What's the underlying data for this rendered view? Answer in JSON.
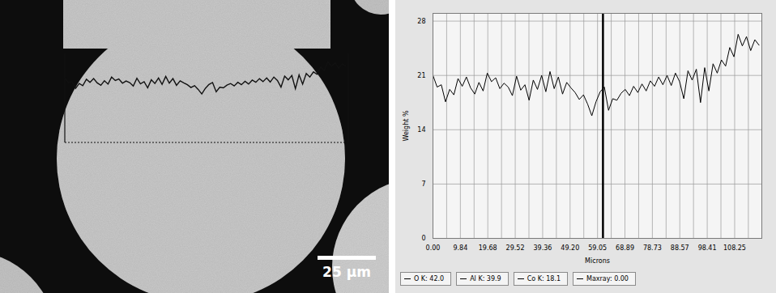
{
  "chart_data": [
    {
      "type": "micrograph",
      "scale_bar": "25 µm"
    },
    {
      "type": "line",
      "x_label": "Microns",
      "y_label": "Weight %",
      "x": [
        0,
        1.5,
        3,
        4.5,
        6,
        7.5,
        9,
        10.5,
        12,
        13.5,
        15,
        16.5,
        18,
        19.5,
        21,
        22.5,
        24,
        25.5,
        27,
        28.5,
        30,
        31.5,
        33,
        34.5,
        36,
        37.5,
        39,
        40.5,
        42,
        43.5,
        45,
        46.5,
        48,
        49.5,
        51,
        52.5,
        54,
        55.5,
        57,
        58.5,
        60,
        61.5,
        63,
        64.5,
        66,
        67.5,
        69,
        70.5,
        72,
        73.5,
        75,
        76.5,
        78,
        79.5,
        81,
        82.5,
        84,
        85.5,
        87,
        88.5,
        90,
        91.5,
        93,
        94.5,
        96,
        97.5,
        99,
        100.5,
        102,
        103.5,
        105,
        106.5,
        108,
        109.5,
        111,
        112.5,
        114,
        115.5,
        117
      ],
      "values": [
        21.0,
        19.5,
        19.8,
        17.6,
        19.2,
        18.5,
        20.6,
        19.6,
        20.8,
        19.4,
        18.6,
        20.1,
        19.0,
        21.3,
        20.2,
        20.7,
        19.3,
        20.0,
        19.5,
        18.4,
        20.9,
        19.1,
        19.8,
        17.8,
        20.4,
        19.2,
        21.0,
        18.9,
        21.5,
        19.3,
        20.8,
        18.6,
        20.1,
        19.4,
        18.8,
        17.9,
        18.5,
        17.3,
        15.8,
        17.6,
        18.9,
        19.5,
        16.5,
        18.0,
        17.8,
        18.7,
        19.2,
        18.4,
        19.6,
        18.8,
        19.9,
        19.0,
        20.3,
        19.6,
        20.8,
        19.8,
        21.0,
        19.7,
        21.3,
        20.2,
        18.0,
        21.6,
        20.4,
        21.8,
        17.5,
        22.0,
        19.0,
        22.5,
        21.3,
        23.0,
        22.2,
        24.6,
        23.4,
        26.3,
        24.8,
        26.0,
        24.2,
        25.6,
        24.9
      ],
      "color": "#000000",
      "marker": "none",
      "line_style": "solid",
      "xlim": [
        0,
        118
      ],
      "ylim": [
        0,
        29
      ],
      "xticks": [
        {
          "value": 0,
          "label": "0.00"
        },
        9.84,
        19.68,
        29.52,
        39.36,
        {
          "value": 49.2,
          "label": "49.20"
        },
        59.05,
        68.89,
        78.73,
        88.57,
        98.41,
        108.25
      ],
      "x_gridlines": [
        4.92,
        14.76,
        24.6,
        34.44,
        44.28,
        54.12,
        63.97,
        73.81,
        83.65,
        93.49,
        103.33,
        113.17
      ],
      "yticks": [
        0,
        7,
        14,
        21,
        28
      ],
      "grid": true,
      "cursor_x": 61,
      "annotations": [
        "O K: 42.0",
        "Al K: 39.9",
        "Co K: 18.1",
        "Maxray: 0.00"
      ]
    }
  ]
}
